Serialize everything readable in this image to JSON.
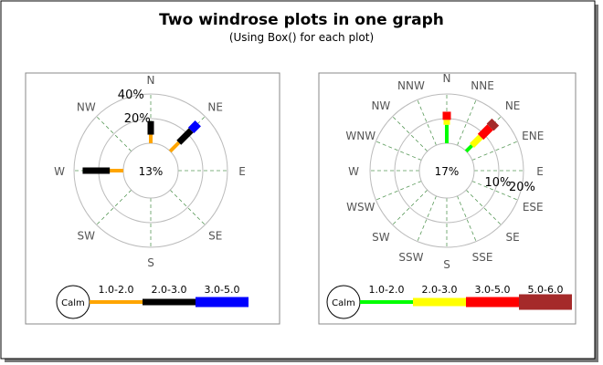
{
  "title": "Two windrose plots in one graph",
  "subtitle": "(Using Box() for each plot)",
  "chart_data": [
    {
      "type": "windrose",
      "directions": [
        "N",
        "NE",
        "E",
        "SE",
        "S",
        "SW",
        "W",
        "NW"
      ],
      "calm_value": "13%",
      "range_labels": [
        "40%",
        "20%"
      ],
      "range_values": [
        40,
        20
      ],
      "max_range": 40,
      "legend": {
        "calm_label": "Calm",
        "bins": [
          {
            "label": "1.0-2.0",
            "color": "#ffa500"
          },
          {
            "label": "2.0-3.0",
            "color": "#000000"
          },
          {
            "label": "3.0-5.0",
            "color": "#0000ff"
          }
        ]
      },
      "data": {
        "N": [
          7,
          11
        ],
        "NE": [
          10,
          14,
          8
        ],
        "W": [
          11,
          22
        ]
      }
    },
    {
      "type": "windrose",
      "directions": [
        "N",
        "NNE",
        "NE",
        "ENE",
        "E",
        "ESE",
        "SE",
        "SSE",
        "S",
        "SSW",
        "SW",
        "WSW",
        "W",
        "WNW",
        "NW",
        "NNW"
      ],
      "calm_value": "17%",
      "range_labels": [
        "20%",
        "10%"
      ],
      "range_values": [
        20,
        10
      ],
      "max_range": 20,
      "legend": {
        "calm_label": "Calm",
        "bins": [
          {
            "label": "1.0-2.0",
            "color": "#00ff00"
          },
          {
            "label": "2.0-3.0",
            "color": "#ffff00"
          },
          {
            "label": "3.0-5.0",
            "color": "#ff0000"
          },
          {
            "label": "5.0-6.0",
            "color": "#a52a2a"
          }
        ]
      },
      "data": {
        "N": [
          7.5,
          2,
          3.3
        ],
        "NE": [
          3.3,
          5,
          5.5,
          3
        ]
      }
    }
  ]
}
